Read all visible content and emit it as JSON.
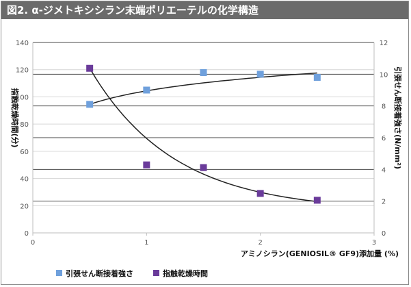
{
  "title": "図2. α-ジメトキシシラン末端ポリエーテルの化学構造",
  "chart_data": {
    "type": "scatter",
    "xlabel": "アミノシラン(GENIOSIL® GF9)添加量 (%)",
    "ylabel_left": "指触乾燥時間(分)",
    "ylabel_right": "引張せん断接着強さ(N/mm²)",
    "xlim": [
      0,
      3
    ],
    "ylim_left": [
      0,
      140
    ],
    "ylim_right": [
      0,
      12
    ],
    "x_ticks": [
      "0",
      "1",
      "2",
      "3"
    ],
    "y_left_ticks": [
      "0",
      "20",
      "40",
      "60",
      "80",
      "100",
      "120",
      "140"
    ],
    "y_right_ticks": [
      "0",
      "2",
      "4",
      "6",
      "8",
      "10",
      "12"
    ],
    "grid": true,
    "legend_position": "bottom-left",
    "series": [
      {
        "name": "引張せん断接着強さ",
        "axis": "right",
        "color": "#6fa0dc",
        "marker": "square",
        "x": [
          0.5,
          1.0,
          1.5,
          2.0,
          2.5
        ],
        "y": [
          8.1,
          9.0,
          10.1,
          10.0,
          9.8
        ]
      },
      {
        "name": "指触乾燥時間",
        "axis": "left",
        "color": "#6a3b9a",
        "marker": "square",
        "x": [
          0.5,
          1.0,
          1.5,
          2.0,
          2.5
        ],
        "y": [
          121,
          50,
          48,
          29,
          24
        ]
      }
    ]
  }
}
